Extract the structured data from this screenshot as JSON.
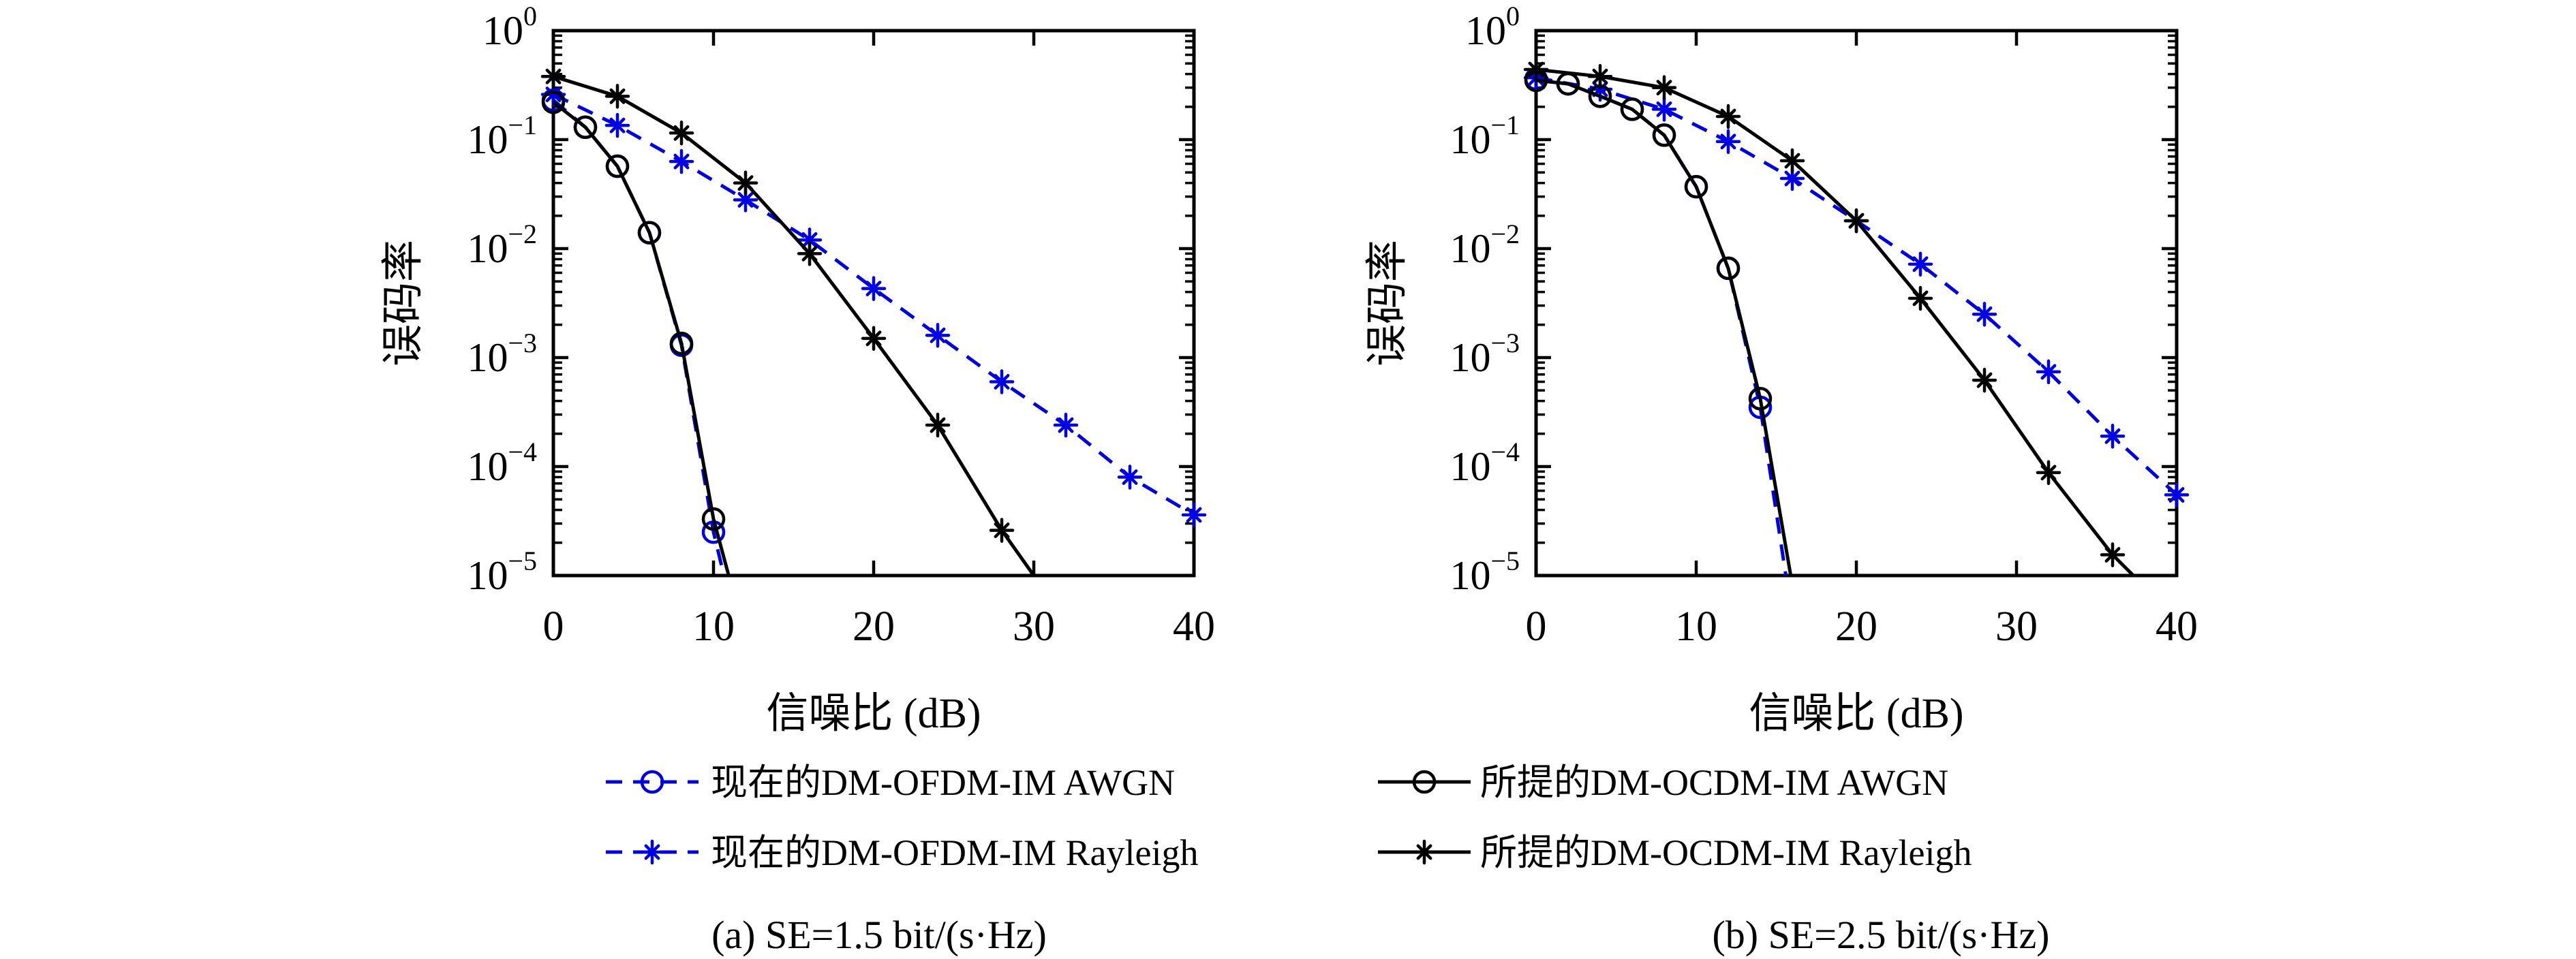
{
  "page": {
    "background": "#ffffff"
  },
  "colors": {
    "existing_series": "#0000E6",
    "proposed_series": "#000000",
    "axis": "#000000"
  },
  "legend": {
    "entries": [
      {
        "label": "现在的DM-OFDM-IM AWGN",
        "color": "#0000E6",
        "line": "dashed",
        "marker": "circle"
      },
      {
        "label": "所提的DM-OCDM-IM AWGN",
        "color": "#000000",
        "line": "solid",
        "marker": "circle"
      },
      {
        "label": "现在的DM-OFDM-IM Rayleigh",
        "color": "#0000E6",
        "line": "dashed",
        "marker": "asterisk"
      },
      {
        "label": "所提的DM-OCDM-IM Rayleigh",
        "color": "#000000",
        "line": "solid",
        "marker": "asterisk"
      }
    ]
  },
  "captions": {
    "a": "(a) SE=1.5 bit/(s·Hz)",
    "b": "(b) SE=2.5 bit/(s·Hz)"
  },
  "chart_data": [
    {
      "id": "a",
      "type": "line",
      "title": "(a) SE=1.5 bit/(s·Hz)",
      "xlabel": "信噪比 (dB)",
      "ylabel": "误码率",
      "xlim": [
        0,
        40
      ],
      "xticks": [
        0,
        10,
        20,
        30,
        40
      ],
      "yscale": "log",
      "ytick_exponents": [
        0,
        -1,
        -2,
        -3,
        -4,
        -5
      ],
      "ylim": [
        1e-05,
        1
      ],
      "grid": false,
      "legend_position": "below-figure",
      "series": [
        {
          "name": "现在的DM-OFDM-IM AWGN",
          "color": "#0000E6",
          "line": "dashed",
          "marker": "circle",
          "x": [
            0,
            2,
            4,
            6,
            8,
            10
          ],
          "y": [
            0.23,
            0.13,
            0.057,
            0.014,
            0.0013,
            2.5e-05
          ],
          "tail": [
            10.65,
            1e-05
          ]
        },
        {
          "name": "现在的DM-OFDM-IM Rayleigh",
          "color": "#0000E6",
          "line": "dashed",
          "marker": "asterisk",
          "x": [
            0,
            4,
            8,
            12,
            16,
            20,
            24,
            28,
            32,
            36,
            40
          ],
          "y": [
            0.26,
            0.135,
            0.063,
            0.028,
            0.012,
            0.0043,
            0.0016,
            0.0006,
            0.00024,
            8e-05,
            3.6e-05
          ]
        },
        {
          "name": "所提的DM-OCDM-IM AWGN",
          "color": "#000000",
          "line": "solid",
          "marker": "circle",
          "x": [
            0,
            2,
            4,
            6,
            8,
            10
          ],
          "y": [
            0.22,
            0.13,
            0.057,
            0.014,
            0.00135,
            3.3e-05
          ],
          "tail": [
            10.95,
            1e-05
          ]
        },
        {
          "name": "所提的DM-OCDM-IM Rayleigh",
          "color": "#000000",
          "line": "solid",
          "marker": "asterisk",
          "x": [
            0,
            4,
            8,
            12,
            16,
            20,
            24,
            28
          ],
          "y": [
            0.38,
            0.25,
            0.115,
            0.04,
            0.009,
            0.0015,
            0.00024,
            2.6e-05
          ],
          "tail": [
            30.0,
            1e-05
          ]
        }
      ]
    },
    {
      "id": "b",
      "type": "line",
      "title": "(b) SE=2.5 bit/(s·Hz)",
      "xlabel": "信噪比 (dB)",
      "ylabel": "误码率",
      "xlim": [
        0,
        40
      ],
      "xticks": [
        0,
        10,
        20,
        30,
        40
      ],
      "yscale": "log",
      "ytick_exponents": [
        0,
        -1,
        -2,
        -3,
        -4,
        -5
      ],
      "ylim": [
        1e-05,
        1
      ],
      "grid": false,
      "legend_position": "below-figure",
      "series": [
        {
          "name": "现在的DM-OFDM-IM AWGN",
          "color": "#0000E6",
          "line": "dashed",
          "marker": "circle",
          "x": [
            0,
            2,
            4,
            6,
            8,
            10,
            12,
            14
          ],
          "y": [
            0.36,
            0.325,
            0.25,
            0.19,
            0.11,
            0.037,
            0.0066,
            0.00035
          ],
          "tail": [
            15.6,
            1e-05
          ]
        },
        {
          "name": "现在的DM-OFDM-IM Rayleigh",
          "color": "#0000E6",
          "line": "dashed",
          "marker": "asterisk",
          "x": [
            0,
            4,
            8,
            12,
            16,
            20,
            24,
            28,
            32,
            36,
            40
          ],
          "y": [
            0.37,
            0.29,
            0.19,
            0.096,
            0.044,
            0.018,
            0.0072,
            0.0025,
            0.00074,
            0.00019,
            5.5e-05
          ]
        },
        {
          "name": "所提的DM-OCDM-IM AWGN",
          "color": "#000000",
          "line": "solid",
          "marker": "circle",
          "x": [
            0,
            2,
            4,
            6,
            8,
            10,
            12,
            14
          ],
          "y": [
            0.35,
            0.325,
            0.25,
            0.19,
            0.11,
            0.037,
            0.0066,
            0.00042
          ],
          "tail": [
            15.9,
            1e-05
          ]
        },
        {
          "name": "所提的DM-OCDM-IM Rayleigh",
          "color": "#000000",
          "line": "solid",
          "marker": "asterisk",
          "x": [
            0,
            4,
            8,
            12,
            16,
            20,
            24,
            28,
            32,
            36
          ],
          "y": [
            0.44,
            0.38,
            0.3,
            0.163,
            0.064,
            0.018,
            0.0035,
            0.00062,
            8.8e-05,
            1.55e-05
          ],
          "tail": [
            37.3,
            1e-05
          ]
        }
      ]
    }
  ]
}
